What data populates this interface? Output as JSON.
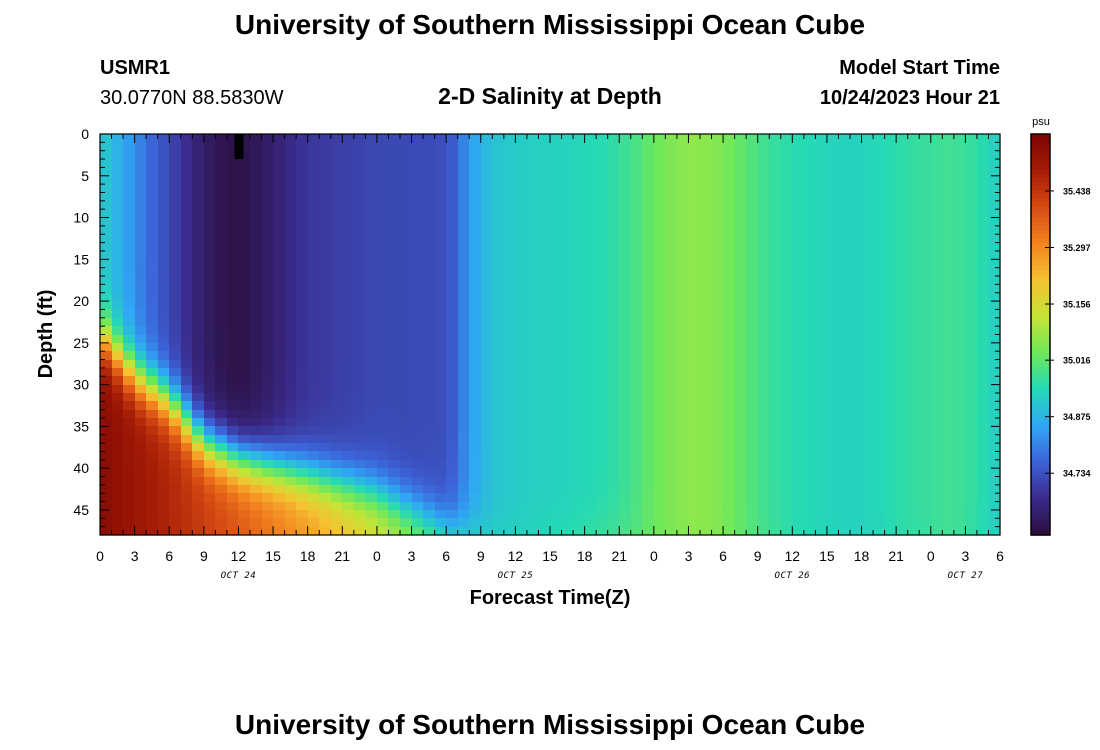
{
  "header": {
    "title": "University of Southern Mississippi Ocean Cube",
    "station": "USMR1",
    "coords": "30.0770N  88.5830W",
    "subtitle": "2-D Salinity at Depth",
    "model_label": "Model Start Time",
    "model_time": "10/24/2023 Hour 21",
    "footer_title": "University of Southern Mississippi Ocean Cube"
  },
  "colors": {
    "colormap": [
      "#2b0f3d",
      "#3a2a8a",
      "#3c63d8",
      "#2fa7f5",
      "#25d9b5",
      "#6ee85a",
      "#c6e436",
      "#f5c232",
      "#f3841f",
      "#d64a13",
      "#a51c06",
      "#7a0403"
    ],
    "missing": "#000000"
  },
  "chart_data": {
    "type": "heatmap",
    "title": "2-D Salinity at Depth",
    "xlabel": "Forecast Time(Z)",
    "ylabel": "Depth (ft)",
    "x_range_hours": [
      0,
      78
    ],
    "x_tick_labels": [
      "0",
      "3",
      "6",
      "9",
      "12",
      "15",
      "18",
      "21",
      "0",
      "3",
      "6",
      "9",
      "12",
      "15",
      "18",
      "21",
      "0",
      "3",
      "6",
      "9",
      "12",
      "15",
      "18",
      "21",
      "0",
      "3",
      "6"
    ],
    "date_labels": [
      {
        "hour": 12,
        "label": "OCT 24"
      },
      {
        "hour": 36,
        "label": "OCT 25"
      },
      {
        "hour": 60,
        "label": "OCT 26"
      },
      {
        "hour": 75,
        "label": "OCT 27"
      }
    ],
    "ylim": [
      0,
      48
    ],
    "y_ticks": [
      0,
      5,
      10,
      15,
      20,
      25,
      30,
      35,
      40,
      45
    ],
    "colorbar": {
      "unit": "psu",
      "min": 34.58,
      "max": 35.58,
      "tick_values": [
        34.734,
        34.875,
        35.016,
        35.156,
        35.297,
        35.438
      ]
    },
    "surface_salinity_by_hour": [
      [
        0,
        34.92
      ],
      [
        2,
        34.86
      ],
      [
        4,
        34.78
      ],
      [
        6,
        34.72
      ],
      [
        8,
        34.66
      ],
      [
        10,
        34.61
      ],
      [
        12,
        34.59
      ],
      [
        14,
        34.62
      ],
      [
        16,
        34.66
      ],
      [
        18,
        34.69
      ],
      [
        20,
        34.7
      ],
      [
        22,
        34.71
      ],
      [
        24,
        34.72
      ],
      [
        27,
        34.72
      ],
      [
        30,
        34.73
      ],
      [
        31,
        34.77
      ],
      [
        32,
        34.84
      ],
      [
        34,
        34.9
      ],
      [
        36,
        34.92
      ],
      [
        40,
        34.93
      ],
      [
        44,
        34.95
      ],
      [
        46,
        34.98
      ],
      [
        48,
        35.03
      ],
      [
        50,
        35.06
      ],
      [
        52,
        35.07
      ],
      [
        54,
        35.05
      ],
      [
        56,
        35.01
      ],
      [
        58,
        34.97
      ],
      [
        60,
        34.95
      ],
      [
        64,
        34.93
      ],
      [
        66,
        34.93
      ],
      [
        70,
        34.96
      ],
      [
        74,
        34.98
      ],
      [
        76,
        34.96
      ],
      [
        78,
        34.92
      ]
    ],
    "bottom_salinity_by_hour": [
      [
        0,
        35.55
      ],
      [
        6,
        35.47
      ],
      [
        12,
        35.38
      ],
      [
        18,
        35.28
      ],
      [
        24,
        35.16
      ],
      [
        30,
        35.03
      ],
      [
        33,
        34.96
      ],
      [
        36,
        34.93
      ],
      [
        48,
        35.03
      ],
      [
        52,
        35.07
      ],
      [
        60,
        34.95
      ],
      [
        66,
        34.93
      ],
      [
        74,
        34.98
      ],
      [
        78,
        34.92
      ]
    ],
    "halocline_depth_ft_by_hour": [
      [
        0,
        24
      ],
      [
        3,
        29
      ],
      [
        6,
        32
      ],
      [
        9,
        37
      ],
      [
        12,
        39
      ],
      [
        15,
        40
      ],
      [
        18,
        41
      ],
      [
        21,
        42
      ],
      [
        24,
        43
      ],
      [
        27,
        45
      ],
      [
        30,
        47
      ],
      [
        33,
        48
      ],
      [
        36,
        48
      ]
    ],
    "missing_data": [
      {
        "hour": 12,
        "depth_top_ft": 0,
        "depth_bottom_ft": 3
      }
    ]
  }
}
